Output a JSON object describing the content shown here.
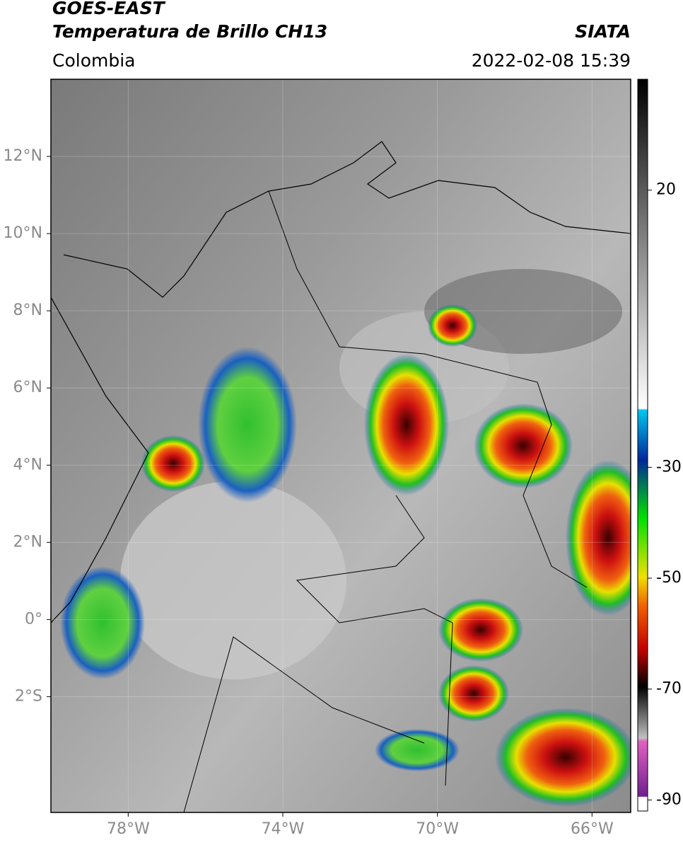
{
  "chart_data": {
    "type": "map",
    "title": "GOES-EAST",
    "subtitle": "Temperatura de Brillo CH13",
    "source": "SIATA",
    "region": "Colombia",
    "timestamp": "2022-02-08 15:39",
    "xlim": [
      -80,
      -65
    ],
    "ylim": [
      -5,
      14
    ],
    "xticks": [
      {
        "value": -78,
        "label": "78°W"
      },
      {
        "value": -74,
        "label": "74°W"
      },
      {
        "value": -70,
        "label": "70°W"
      },
      {
        "value": -66,
        "label": "66°W"
      }
    ],
    "yticks": [
      {
        "value": 12,
        "label": "12°N"
      },
      {
        "value": 10,
        "label": "10°N"
      },
      {
        "value": 8,
        "label": "8°N"
      },
      {
        "value": 6,
        "label": "6°N"
      },
      {
        "value": 4,
        "label": "4°N"
      },
      {
        "value": 2,
        "label": "2°N"
      },
      {
        "value": 0,
        "label": "0°"
      },
      {
        "value": -2,
        "label": "2°S"
      }
    ],
    "grid": true,
    "colorbar": {
      "lim": [
        -92,
        40
      ],
      "ticks": [
        20,
        -30,
        -50,
        -70,
        -90
      ]
    }
  }
}
